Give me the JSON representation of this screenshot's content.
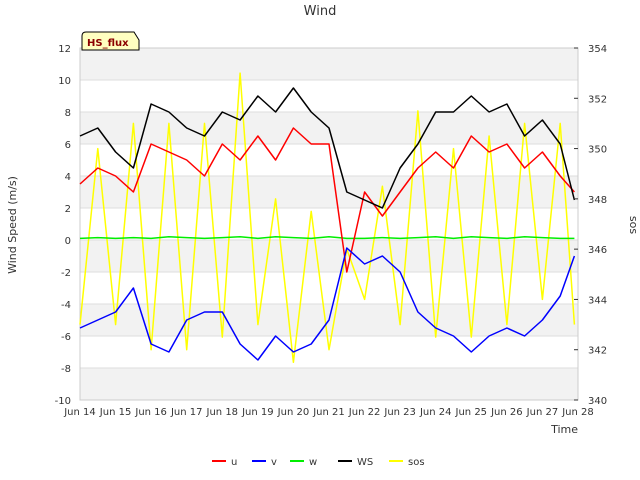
{
  "chart_data": {
    "type": "line",
    "title": "Wind",
    "badge": "HS_flux",
    "xlabel": "Time",
    "ylabel": "Wind Speed (m/s)",
    "y2label": "sos",
    "ylim": [
      -10,
      12
    ],
    "y2lim": [
      340,
      354
    ],
    "xlim": [
      14,
      28
    ],
    "yticks": [
      -10,
      -8,
      -6,
      -4,
      -2,
      0,
      2,
      4,
      6,
      8,
      10,
      12
    ],
    "y2ticks": [
      340,
      342,
      344,
      346,
      348,
      350,
      352,
      354
    ],
    "xticks": [
      14,
      15,
      16,
      17,
      18,
      19,
      20,
      21,
      22,
      23,
      24,
      25,
      26,
      27,
      28
    ],
    "xtick_labels": [
      "Jun 14",
      "Jun 15",
      "Jun 16",
      "Jun 17",
      "Jun 18",
      "Jun 19",
      "Jun 20",
      "Jun 21",
      "Jun 22",
      "Jun 23",
      "Jun 24",
      "Jun 25",
      "Jun 26",
      "Jun 27",
      "Jun 28"
    ],
    "grid": "horizontal bands",
    "x": [
      14.0,
      14.5,
      15.0,
      15.5,
      16.0,
      16.5,
      17.0,
      17.5,
      18.0,
      18.5,
      19.0,
      19.5,
      20.0,
      20.5,
      21.0,
      21.5,
      22.0,
      22.5,
      23.0,
      23.5,
      24.0,
      24.5,
      25.0,
      25.5,
      26.0,
      26.5,
      27.0,
      27.5,
      27.9
    ],
    "series": [
      {
        "name": "u",
        "color": "#ff0000",
        "axis": "left",
        "values": [
          3.5,
          4.5,
          4.0,
          3.0,
          6.0,
          5.5,
          5.0,
          4.0,
          6.0,
          5.0,
          6.5,
          5.0,
          7.0,
          6.0,
          6.0,
          -2.0,
          3.0,
          1.5,
          3.0,
          4.5,
          5.5,
          4.5,
          6.5,
          5.5,
          6.0,
          4.5,
          5.5,
          4.0,
          3.0
        ]
      },
      {
        "name": "v",
        "color": "#0000ff",
        "axis": "left",
        "values": [
          -5.5,
          -5.0,
          -4.5,
          -3.0,
          -6.5,
          -7.0,
          -5.0,
          -4.5,
          -4.5,
          -6.5,
          -7.5,
          -6.0,
          -7.0,
          -6.5,
          -5.0,
          -0.5,
          -1.5,
          -1.0,
          -2.0,
          -4.5,
          -5.5,
          -6.0,
          -7.0,
          -6.0,
          -5.5,
          -6.0,
          -5.0,
          -3.5,
          -1.0
        ]
      },
      {
        "name": "w",
        "color": "#00ee00",
        "axis": "left",
        "values": [
          0.1,
          0.15,
          0.1,
          0.15,
          0.1,
          0.2,
          0.15,
          0.1,
          0.15,
          0.2,
          0.1,
          0.2,
          0.15,
          0.1,
          0.2,
          0.1,
          0.1,
          0.15,
          0.1,
          0.15,
          0.2,
          0.1,
          0.2,
          0.15,
          0.1,
          0.2,
          0.15,
          0.1,
          0.1
        ]
      },
      {
        "name": "WS",
        "color": "#000000",
        "axis": "left",
        "values": [
          6.5,
          7.0,
          5.5,
          4.5,
          8.5,
          8.0,
          7.0,
          6.5,
          8.0,
          7.5,
          9.0,
          8.0,
          9.5,
          8.0,
          7.0,
          3.0,
          2.5,
          2.0,
          4.5,
          6.0,
          8.0,
          8.0,
          9.0,
          8.0,
          8.5,
          6.5,
          7.5,
          6.0,
          2.5
        ]
      },
      {
        "name": "sos",
        "color": "#ffff00",
        "axis": "right",
        "values": [
          343.0,
          350.0,
          343.0,
          351.0,
          342.0,
          351.0,
          342.0,
          351.0,
          342.5,
          353.0,
          343.0,
          348.0,
          341.5,
          347.5,
          342.0,
          346.0,
          344.0,
          348.5,
          343.0,
          351.5,
          342.5,
          350.0,
          342.5,
          350.5,
          343.0,
          351.0,
          344.0,
          351.0,
          343.0
        ]
      }
    ]
  }
}
